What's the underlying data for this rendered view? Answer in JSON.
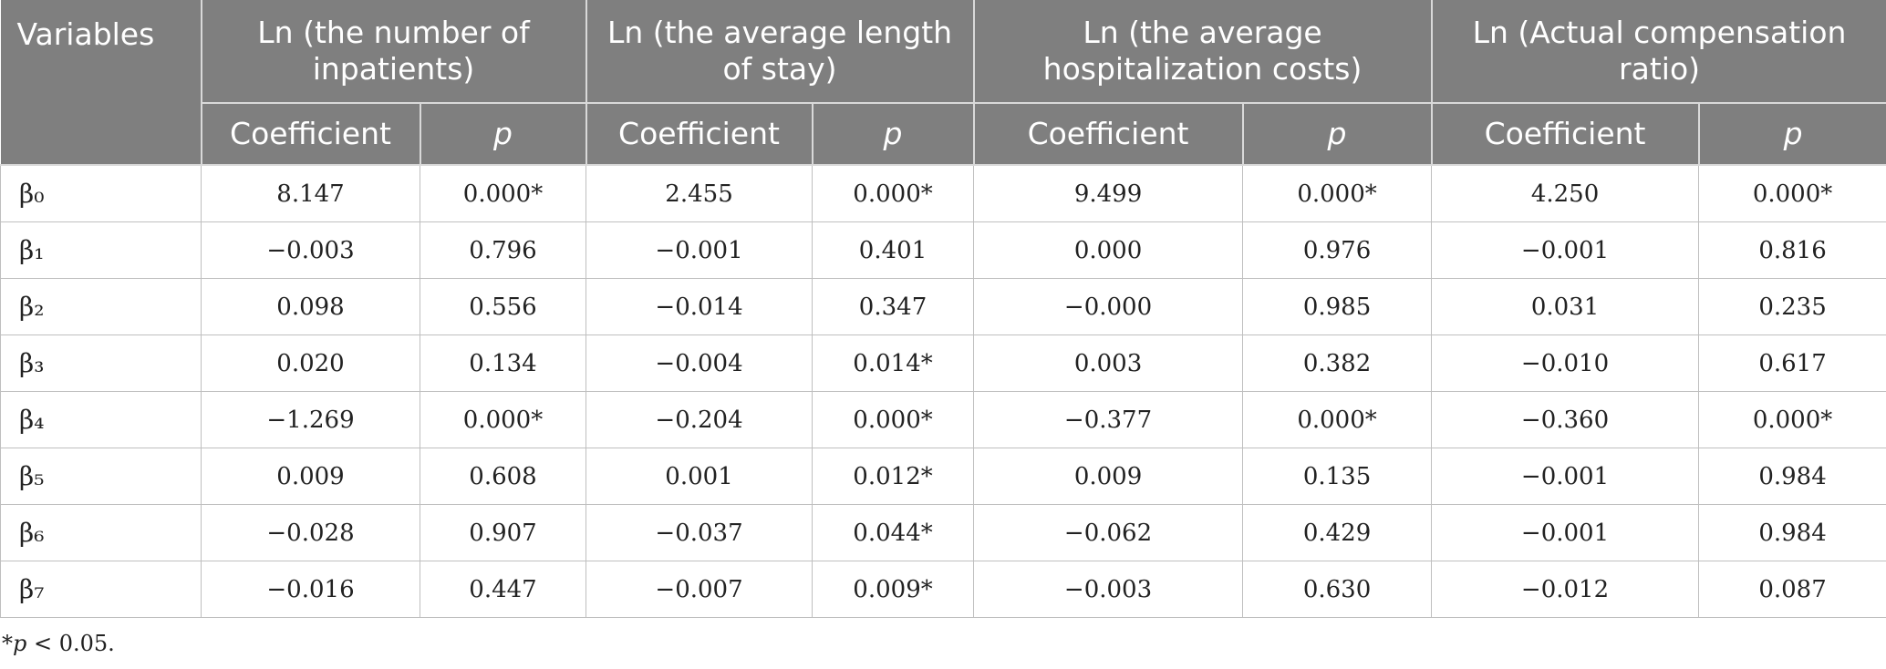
{
  "table": {
    "variables_header": "Variables",
    "groups": [
      "Ln (the number of inpatients)",
      "Ln (the average length of stay)",
      "Ln (the average hospitalization costs)",
      "Ln (Actual compensation ratio)"
    ],
    "sub_headers": {
      "coefficient": "Coefficient",
      "p": "p"
    },
    "rows": [
      {
        "var": "β₀",
        "values": [
          "8.147",
          "0.000*",
          "2.455",
          "0.000*",
          "9.499",
          "0.000*",
          "4.250",
          "0.000*"
        ]
      },
      {
        "var": "β₁",
        "values": [
          "−0.003",
          "0.796",
          "−0.001",
          "0.401",
          "0.000",
          "0.976",
          "−0.001",
          "0.816"
        ]
      },
      {
        "var": "β₂",
        "values": [
          "0.098",
          "0.556",
          "−0.014",
          "0.347",
          "−0.000",
          "0.985",
          "0.031",
          "0.235"
        ]
      },
      {
        "var": "β₃",
        "values": [
          "0.020",
          "0.134",
          "−0.004",
          "0.014*",
          "0.003",
          "0.382",
          "−0.010",
          "0.617"
        ]
      },
      {
        "var": "β₄",
        "values": [
          "−1.269",
          "0.000*",
          "−0.204",
          "0.000*",
          "−0.377",
          "0.000*",
          "−0.360",
          "0.000*"
        ]
      },
      {
        "var": "β₅",
        "values": [
          "0.009",
          "0.608",
          "0.001",
          "0.012*",
          "0.009",
          "0.135",
          "−0.001",
          "0.984"
        ]
      },
      {
        "var": "β₆",
        "values": [
          "−0.028",
          "0.907",
          "−0.037",
          "0.044*",
          "−0.062",
          "0.429",
          "−0.001",
          "0.984"
        ]
      },
      {
        "var": "β₇",
        "values": [
          "−0.016",
          "0.447",
          "−0.007",
          "0.009*",
          "−0.003",
          "0.630",
          "−0.012",
          "0.087"
        ]
      }
    ]
  },
  "footnote": {
    "star": "*",
    "p": "p",
    "rest": " < 0.05."
  }
}
